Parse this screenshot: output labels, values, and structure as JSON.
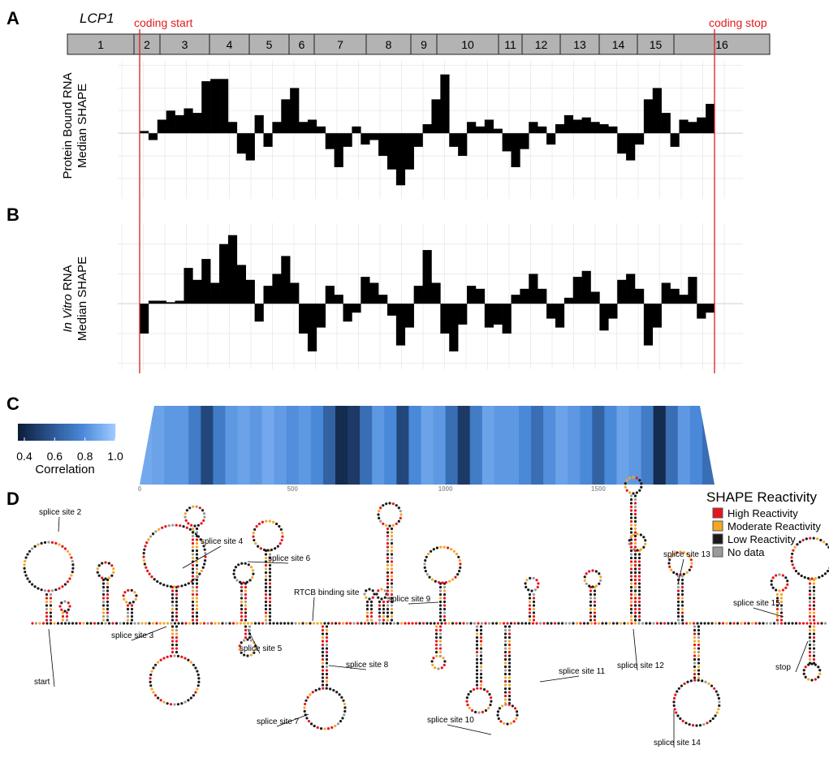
{
  "panel_a": {
    "label": "A",
    "gene": "LCP1",
    "exons": [
      "1",
      "2",
      "3",
      "4",
      "5",
      "6",
      "7",
      "8",
      "9",
      "10",
      "11",
      "12",
      "13",
      "14",
      "15",
      "16"
    ],
    "coding_start": "coding start",
    "coding_stop": "coding stop",
    "ylabel_line1": "Protein Bound RNA",
    "ylabel_line2": "Median SHAPE",
    "type": "bar",
    "ylim": [
      -2.9,
      3.2
    ],
    "color": "#000000",
    "grid": true,
    "values": [
      0.1,
      -0.3,
      0.6,
      1.0,
      0.8,
      1.1,
      0.9,
      2.3,
      2.4,
      2.4,
      0.5,
      -0.9,
      -1.2,
      0.8,
      -0.6,
      0.5,
      1.5,
      2.0,
      0.5,
      0.6,
      0.3,
      -0.7,
      -1.5,
      -0.6,
      0.3,
      -0.5,
      -0.3,
      -1.0,
      -1.6,
      -2.3,
      -1.6,
      -0.6,
      0.4,
      1.5,
      2.6,
      -0.6,
      -1.0,
      0.5,
      0.3,
      0.6,
      0.2,
      -0.8,
      -1.5,
      -0.7,
      0.5,
      0.3,
      -0.5,
      0.4,
      0.8,
      0.6,
      0.7,
      0.5,
      0.4,
      0.3,
      -0.9,
      -1.2,
      -0.5,
      1.5,
      2.0,
      0.9,
      -0.6,
      0.6,
      0.5,
      0.7,
      1.3
    ]
  },
  "panel_b": {
    "label": "B",
    "ylabel_italic": "In Vitro",
    "ylabel_rest": "RNA",
    "ylabel_line2": "Median SHAPE",
    "type": "bar",
    "ylim": [
      -2.2,
      2.7
    ],
    "color": "#000000",
    "grid": true,
    "values": [
      -1.0,
      0.1,
      0.1,
      0.05,
      0.1,
      1.2,
      0.8,
      1.5,
      0.7,
      2.0,
      2.3,
      1.3,
      0.8,
      -0.6,
      0.6,
      1.0,
      1.6,
      0.7,
      -1.0,
      -1.6,
      -0.8,
      0.6,
      0.3,
      -0.6,
      -0.3,
      0.9,
      0.7,
      0.3,
      -0.4,
      -1.4,
      -0.8,
      0.6,
      1.8,
      0.7,
      -1.0,
      -1.6,
      -0.7,
      0.6,
      0.5,
      -0.8,
      -0.7,
      -1.0,
      0.3,
      0.5,
      1.0,
      0.5,
      -0.5,
      -0.8,
      0.2,
      0.9,
      1.1,
      0.4,
      -0.9,
      -0.5,
      0.8,
      1.0,
      0.5,
      -1.4,
      -0.8,
      0.7,
      0.5,
      0.3,
      0.9,
      -0.5,
      -0.3
    ]
  },
  "panel_c": {
    "label": "C",
    "type": "heatmap",
    "colorbar_label": "Correlation",
    "clim": [
      0.4,
      1.0
    ],
    "cticks": [
      0.4,
      0.6,
      0.8,
      {
        "value": 1.0,
        "label": "1.0"
      }
    ],
    "xlim": [
      0,
      1880
    ],
    "xticks": [
      0,
      500,
      1000,
      1500
    ],
    "values": [
      0.9,
      0.88,
      0.85,
      0.85,
      0.75,
      0.55,
      0.75,
      0.85,
      0.88,
      0.85,
      0.9,
      0.86,
      0.82,
      0.85,
      0.8,
      0.65,
      0.45,
      0.5,
      0.7,
      0.85,
      0.8,
      0.55,
      0.8,
      0.88,
      0.85,
      0.7,
      0.5,
      0.75,
      0.88,
      0.85,
      0.85,
      0.8,
      0.7,
      0.82,
      0.88,
      0.85,
      0.8,
      0.65,
      0.8,
      0.88,
      0.85,
      0.75,
      0.45,
      0.7,
      0.85,
      0.8,
      0.7
    ]
  },
  "panel_d": {
    "label": "D",
    "legend_title": "SHAPE Reactivity",
    "legend": [
      {
        "name": "High Reactivity",
        "color": "#e8141b"
      },
      {
        "name": "Moderate Reactivity",
        "color": "#f5a623"
      },
      {
        "name": "Low Reactivity",
        "color": "#1a1a1a"
      },
      {
        "name": "No data",
        "color": "#9a9a9a"
      }
    ],
    "annotations": [
      "splice site 2",
      "splice site 4",
      "splice site 6",
      "RTCB binding site",
      "splice site 9",
      "splice site 13",
      "splice site 15",
      "splice site 3",
      "splice site 5",
      "splice site 8",
      "splice site 12",
      "splice site 11",
      "start",
      "stop",
      "splice site 7",
      "splice site 10",
      "splice site 14"
    ]
  }
}
